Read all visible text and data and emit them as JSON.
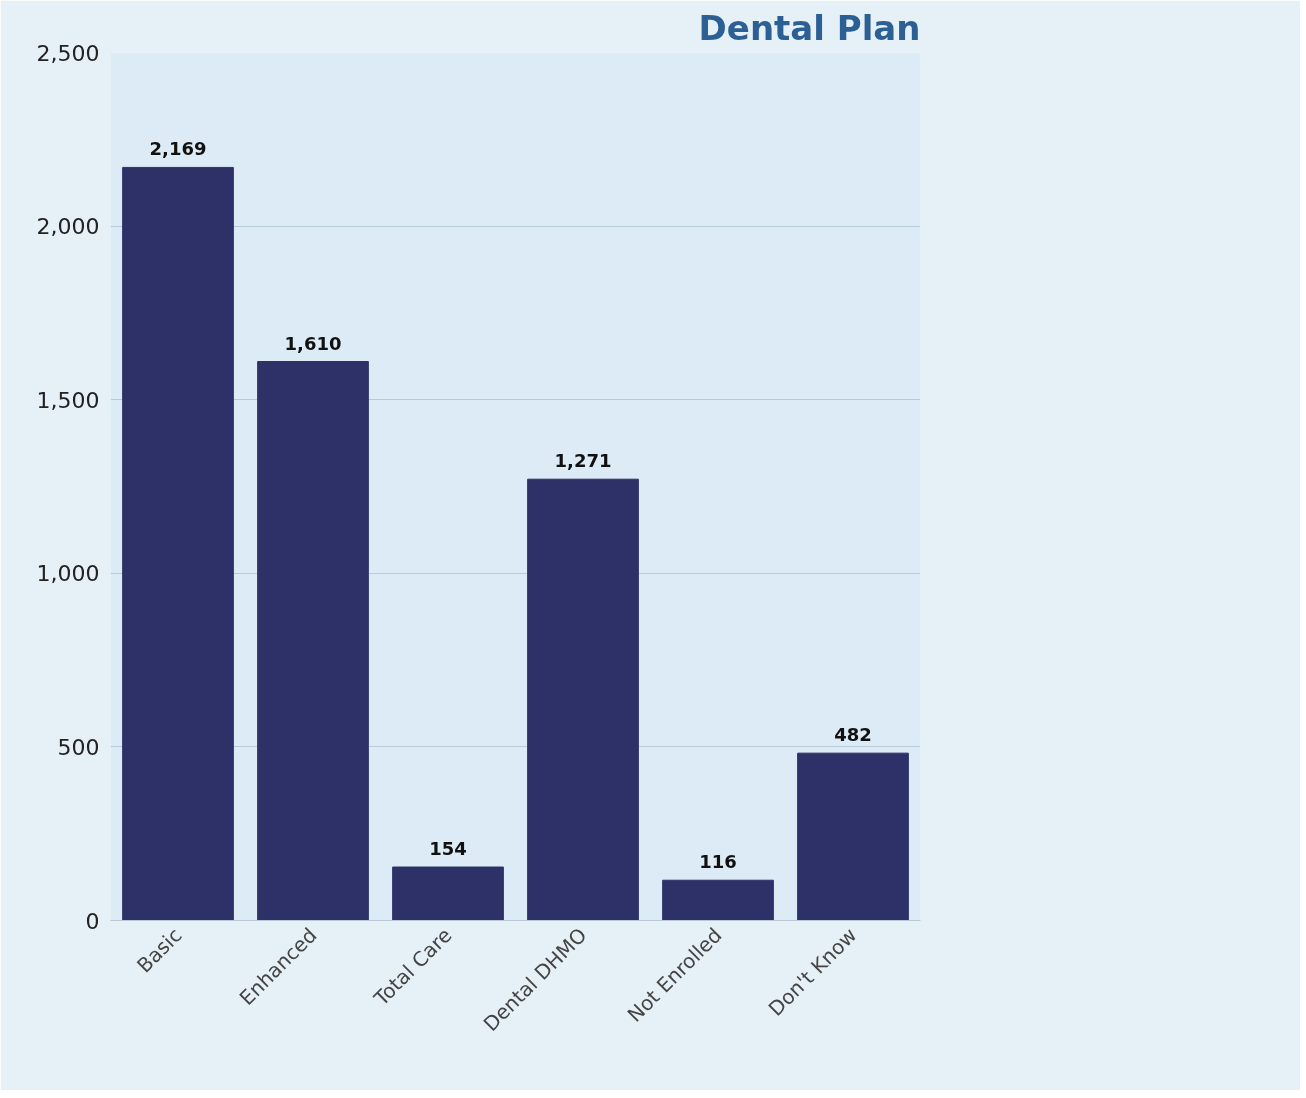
{
  "chart_data": {
    "type": "bar",
    "title": "Dental Plan",
    "categories": [
      "Basic",
      "Enhanced",
      "Total Care",
      "Dental DHMO",
      "Not Enrolled",
      "Don't Know"
    ],
    "values": [
      2169,
      1610,
      154,
      1271,
      116,
      482
    ],
    "value_labels": [
      "2,169",
      "1,610",
      "154",
      "1,271",
      "116",
      "482"
    ],
    "color": "#2e3168",
    "ylim": [
      0,
      2500
    ],
    "yticks": [
      0,
      500,
      {
        "value": 1000,
        "label": "1,000"
      },
      {
        "value": 1500,
        "label": "1,500"
      },
      {
        "value": 2000,
        "label": "2,000"
      },
      {
        "value": 2500,
        "label": "2,500"
      }
    ],
    "grid": "y"
  }
}
